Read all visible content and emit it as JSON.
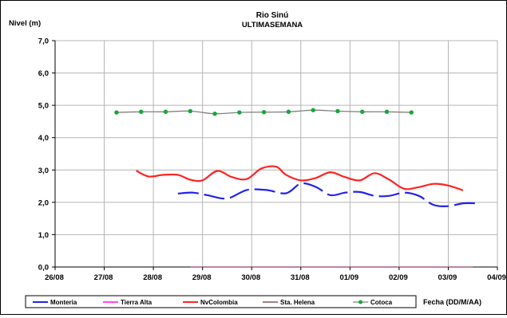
{
  "chart_data": {
    "type": "line",
    "title": "Rio Sinú",
    "subtitle": "ULTIMASEMANA",
    "ylabel": "Nivel (m)",
    "xlabel": "Fecha (DD/M/AA)",
    "ylim": [
      0,
      7
    ],
    "yticks": [
      "0,0",
      "1,0",
      "2,0",
      "3,0",
      "4,0",
      "5,0",
      "6,0",
      "7,0"
    ],
    "xlim": [
      0,
      9
    ],
    "xticks": [
      "26/08",
      "27/08",
      "28/08",
      "29/08",
      "30/08",
      "31/08",
      "01/09",
      "02/09",
      "03/09",
      "04/09"
    ],
    "grid": true,
    "legend_position": "bottom",
    "series": [
      {
        "name": "Monteria",
        "color": "#2222ee",
        "style": "dashed",
        "x": [
          2.5,
          2.8,
          3.1,
          3.5,
          3.9,
          4.3,
          4.7,
          5.0,
          5.3,
          5.6,
          5.9,
          6.2,
          6.5,
          6.8,
          7.1,
          7.4,
          7.7,
          8.0,
          8.3,
          8.6
        ],
        "y": [
          2.27,
          2.3,
          2.22,
          2.12,
          2.38,
          2.38,
          2.28,
          2.58,
          2.48,
          2.22,
          2.3,
          2.32,
          2.2,
          2.2,
          2.3,
          2.2,
          1.92,
          1.88,
          1.97,
          1.97
        ]
      },
      {
        "name": "Tierra Alta",
        "color": "#ff44ff",
        "style": "solid",
        "x": [
          2.75,
          5.0,
          6.15,
          7.7,
          8.0,
          8.5
        ],
        "y": [
          0,
          0,
          0,
          0,
          0,
          0
        ]
      },
      {
        "name": "NvColombia",
        "color": "#ff2222",
        "style": "solid",
        "x": [
          1.65,
          1.9,
          2.2,
          2.5,
          2.75,
          3.0,
          3.3,
          3.6,
          3.9,
          4.2,
          4.5,
          4.7,
          5.0,
          5.3,
          5.6,
          5.9,
          6.2,
          6.5,
          6.8,
          7.1,
          7.4,
          7.7,
          8.0,
          8.3
        ],
        "y": [
          2.98,
          2.8,
          2.85,
          2.85,
          2.7,
          2.68,
          2.97,
          2.78,
          2.72,
          3.05,
          3.1,
          2.85,
          2.68,
          2.75,
          2.93,
          2.78,
          2.68,
          2.9,
          2.7,
          2.42,
          2.47,
          2.57,
          2.52,
          2.37
        ]
      },
      {
        "name": "Sta. Helena",
        "color": "#a08080",
        "style": "solid",
        "x": [
          2.75,
          5.0,
          6.15,
          7.7,
          8.0,
          8.5
        ],
        "y": [
          0,
          0,
          0,
          0,
          0,
          0
        ]
      },
      {
        "name": "Cotoca",
        "color": "#808080",
        "marker_color": "#11aa33",
        "style": "solid-markers",
        "x": [
          1.25,
          1.75,
          2.25,
          2.75,
          3.25,
          3.75,
          4.25,
          4.75,
          5.25,
          5.75,
          6.25,
          6.75,
          7.25
        ],
        "y": [
          4.78,
          4.8,
          4.8,
          4.82,
          4.74,
          4.78,
          4.79,
          4.8,
          4.85,
          4.82,
          4.8,
          4.8,
          4.78
        ]
      }
    ]
  }
}
